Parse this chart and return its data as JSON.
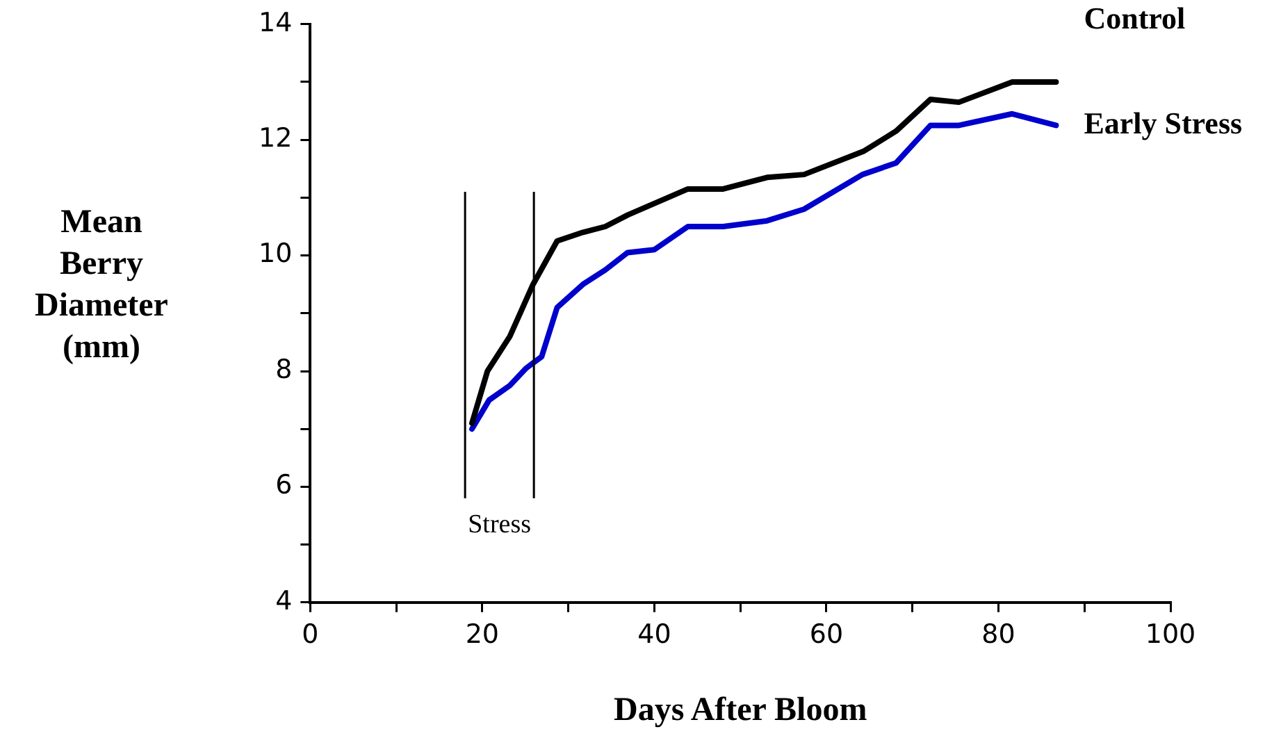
{
  "chart_data": {
    "type": "line",
    "xlabel": "Days After Bloom",
    "ylabel": "Mean Berry Diameter (mm)",
    "xlim": [
      0,
      100
    ],
    "xticks": [
      0,
      {
        "value": 10,
        "label": null
      },
      20,
      {
        "value": 30,
        "label": null
      },
      40,
      {
        "value": 50,
        "label": null
      },
      60,
      {
        "value": 70,
        "label": null
      },
      80,
      {
        "value": 90,
        "label": null
      },
      100
    ],
    "ylim": [
      4,
      14
    ],
    "yticks": [
      4,
      {
        "value": 5,
        "label": null
      },
      6,
      {
        "value": 7,
        "label": null
      },
      8,
      {
        "value": 9,
        "label": null
      },
      10,
      {
        "value": 11,
        "label": null
      },
      12,
      {
        "value": 13,
        "label": null
      },
      14
    ],
    "grid": false,
    "legend": false,
    "marker": "none",
    "line_style": "solid",
    "ref_lines": [
      {
        "axis": "x",
        "value": 18,
        "color": "#000000"
      },
      {
        "axis": "x",
        "value": 26,
        "color": "#000000"
      }
    ],
    "annotations": [
      "Stress"
    ],
    "series": [
      {
        "name": "Control",
        "color": "#000000",
        "x": [
          18.8,
          20.6,
          23.2,
          25.9,
          28.7,
          31.7,
          34.3,
          36.9,
          43.9,
          48.0,
          53.1,
          57.4,
          64.3,
          68.1,
          72.1,
          75.4,
          81.6,
          86.7
        ],
        "values": [
          7.1,
          8.0,
          8.6,
          9.5,
          10.25,
          10.4,
          10.5,
          10.7,
          11.15,
          11.15,
          11.35,
          11.4,
          11.8,
          12.15,
          12.7,
          12.65,
          13.0,
          13.0
        ]
      },
      {
        "name": "Early Stress",
        "color": "#0000cc",
        "x": [
          18.8,
          20.8,
          23.2,
          25.1,
          26.9,
          28.7,
          31.7,
          34.3,
          36.9,
          40.0,
          43.9,
          48.0,
          53.1,
          57.4,
          64.2,
          68.1,
          72.1,
          75.4,
          81.6,
          86.7
        ],
        "values": [
          7.0,
          7.5,
          7.75,
          8.05,
          8.25,
          9.1,
          9.5,
          9.75,
          10.05,
          10.1,
          10.5,
          10.5,
          10.6,
          10.8,
          11.4,
          11.6,
          12.25,
          12.25,
          12.45,
          12.25
        ]
      }
    ]
  }
}
